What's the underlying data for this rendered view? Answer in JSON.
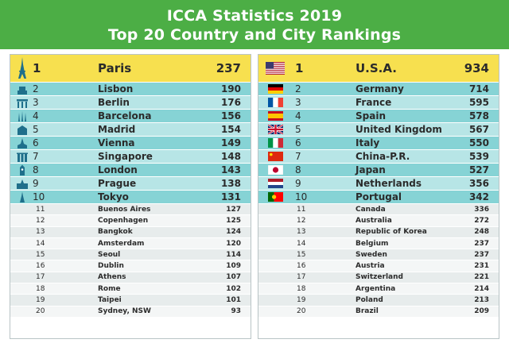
{
  "header": {
    "title_line1": "ICCA Statistics 2019",
    "title_line2": "Top 20 Country and City Rankings"
  },
  "cities": [
    {
      "rank": "1",
      "name": "Paris",
      "value": "237",
      "icon": "eiffel-tower-icon"
    },
    {
      "rank": "2",
      "name": "Lisbon",
      "value": "190",
      "icon": "belem-tower-icon"
    },
    {
      "rank": "3",
      "name": "Berlin",
      "value": "176",
      "icon": "brandenburg-gate-icon"
    },
    {
      "rank": "4",
      "name": "Barcelona",
      "value": "156",
      "icon": "sagrada-familia-icon"
    },
    {
      "rank": "5",
      "name": "Madrid",
      "value": "154",
      "icon": "madrid-landmark-icon"
    },
    {
      "rank": "6",
      "name": "Vienna",
      "value": "149",
      "icon": "vienna-landmark-icon"
    },
    {
      "rank": "7",
      "name": "Singapore",
      "value": "148",
      "icon": "marina-bay-icon"
    },
    {
      "rank": "8",
      "name": "London",
      "value": "143",
      "icon": "big-ben-icon"
    },
    {
      "rank": "9",
      "name": "Prague",
      "value": "138",
      "icon": "prague-castle-icon"
    },
    {
      "rank": "10",
      "name": "Tokyo",
      "value": "131",
      "icon": "tokyo-tower-icon"
    },
    {
      "rank": "11",
      "name": "Buenos Aires",
      "value": "127"
    },
    {
      "rank": "12",
      "name": "Copenhagen",
      "value": "125"
    },
    {
      "rank": "13",
      "name": "Bangkok",
      "value": "124"
    },
    {
      "rank": "14",
      "name": "Amsterdam",
      "value": "120"
    },
    {
      "rank": "15",
      "name": "Seoul",
      "value": "114"
    },
    {
      "rank": "16",
      "name": "Dublin",
      "value": "109"
    },
    {
      "rank": "17",
      "name": "Athens",
      "value": "107"
    },
    {
      "rank": "18",
      "name": "Rome",
      "value": "102"
    },
    {
      "rank": "19",
      "name": "Taipei",
      "value": "101"
    },
    {
      "rank": "20",
      "name": "Sydney, NSW",
      "value": "93"
    }
  ],
  "countries": [
    {
      "rank": "1",
      "name": "U.S.A.",
      "value": "934",
      "flag": "usa"
    },
    {
      "rank": "2",
      "name": "Germany",
      "value": "714",
      "flag": "germany"
    },
    {
      "rank": "3",
      "name": "France",
      "value": "595",
      "flag": "france"
    },
    {
      "rank": "4",
      "name": "Spain",
      "value": "578",
      "flag": "spain"
    },
    {
      "rank": "5",
      "name": "United Kingdom",
      "value": "567",
      "flag": "uk"
    },
    {
      "rank": "6",
      "name": "Italy",
      "value": "550",
      "flag": "italy"
    },
    {
      "rank": "7",
      "name": "China-P.R.",
      "value": "539",
      "flag": "china"
    },
    {
      "rank": "8",
      "name": "Japan",
      "value": "527",
      "flag": "japan"
    },
    {
      "rank": "9",
      "name": "Netherlands",
      "value": "356",
      "flag": "netherlands"
    },
    {
      "rank": "10",
      "name": "Portugal",
      "value": "342",
      "flag": "portugal"
    },
    {
      "rank": "11",
      "name": "Canada",
      "value": "336"
    },
    {
      "rank": "12",
      "name": "Australia",
      "value": "272"
    },
    {
      "rank": "13",
      "name": "Republic of Korea",
      "value": "248"
    },
    {
      "rank": "14",
      "name": "Belgium",
      "value": "237"
    },
    {
      "rank": "15",
      "name": "Sweden",
      "value": "237"
    },
    {
      "rank": "16",
      "name": "Austria",
      "value": "231"
    },
    {
      "rank": "17",
      "name": "Switzerland",
      "value": "221"
    },
    {
      "rank": "18",
      "name": "Argentina",
      "value": "214"
    },
    {
      "rank": "19",
      "name": "Poland",
      "value": "213"
    },
    {
      "rank": "20",
      "name": "Brazil",
      "value": "209"
    }
  ],
  "colors": {
    "header_bg": "#4cae45",
    "first_row": "#f7e04f",
    "top_row": "#86d3d5",
    "top_row_alt": "#b7e5e6",
    "lower_row": "#e7ecec",
    "lower_row_alt": "#f4f6f6",
    "landmark_icon": "#1f6f8b"
  }
}
